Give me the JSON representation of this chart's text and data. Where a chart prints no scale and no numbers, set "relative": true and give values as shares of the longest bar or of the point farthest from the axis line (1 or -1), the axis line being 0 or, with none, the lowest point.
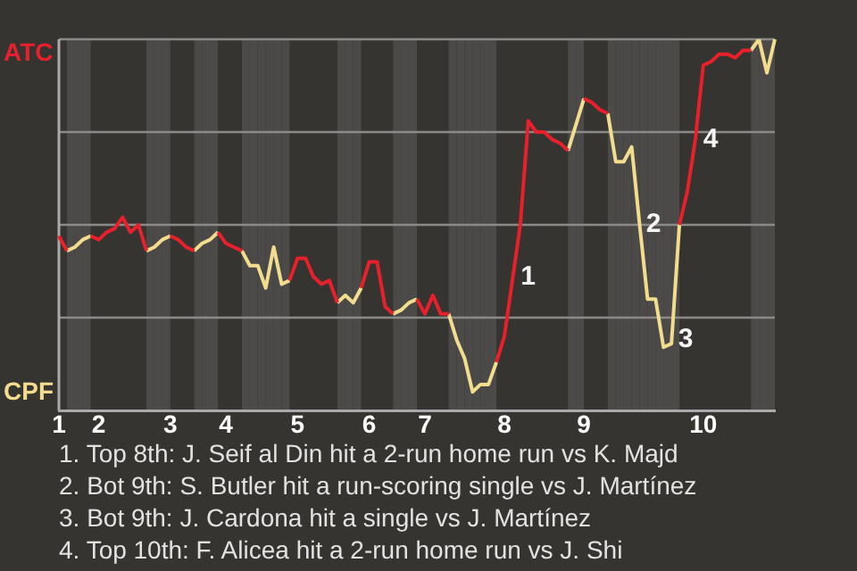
{
  "chart_data": {
    "type": "line",
    "relative": true,
    "categories": [
      "1",
      null,
      null,
      null,
      null,
      "2",
      null,
      null,
      null,
      null,
      null,
      null,
      null,
      null,
      "3",
      null,
      null,
      null,
      null,
      null,
      null,
      "4",
      null,
      null,
      null,
      null,
      null,
      null,
      null,
      null,
      "5",
      null,
      null,
      null,
      null,
      null,
      null,
      null,
      null,
      "6",
      null,
      null,
      null,
      null,
      null,
      null,
      "7",
      null,
      null,
      null,
      null,
      null,
      null,
      null,
      null,
      null,
      "8",
      null,
      null,
      null,
      null,
      null,
      null,
      null,
      null,
      null,
      "9",
      null,
      null,
      null,
      null,
      null,
      null,
      null,
      null,
      null,
      null,
      null,
      null,
      null,
      null,
      "10",
      null,
      null,
      null,
      null,
      null,
      null,
      null,
      null,
      null
    ],
    "series": [
      {
        "name": "ATC",
        "color": "#e8202c",
        "values": [
          0.47,
          0.43,
          null,
          null,
          0.47,
          0.46,
          0.48,
          0.49,
          0.52,
          0.48,
          0.5,
          0.43,
          null,
          null,
          0.47,
          0.46,
          0.44,
          0.43,
          null,
          null,
          0.48,
          0.45,
          0.44,
          0.43,
          null,
          null,
          null,
          null,
          null,
          0.35,
          0.41,
          0.41,
          0.36,
          0.34,
          0.35,
          0.29,
          null,
          null,
          0.33,
          0.4,
          0.4,
          0.28,
          0.26,
          null,
          null,
          0.3,
          0.26,
          0.31,
          0.26,
          0.26,
          null,
          null,
          null,
          null,
          null,
          0.13,
          0.2,
          0.35,
          0.5,
          0.78,
          0.75,
          0.75,
          0.73,
          0.72,
          0.7,
          null,
          0.84,
          0.83,
          0.81,
          0.8,
          null,
          null,
          null,
          null,
          null,
          null,
          null,
          null,
          0.5,
          0.59,
          0.73,
          0.93,
          0.94,
          0.96,
          0.96,
          0.95,
          0.97,
          0.97,
          null,
          null,
          null
        ]
      },
      {
        "name": "CPF",
        "color": "#f2dc8e",
        "values": [
          null,
          0.43,
          0.44,
          0.46,
          0.47,
          null,
          null,
          null,
          null,
          null,
          null,
          0.43,
          0.44,
          0.46,
          0.47,
          null,
          null,
          0.43,
          0.45,
          0.46,
          0.48,
          null,
          null,
          0.43,
          0.39,
          0.39,
          0.33,
          0.44,
          0.34,
          0.35,
          null,
          null,
          null,
          null,
          null,
          0.29,
          0.31,
          0.29,
          0.33,
          null,
          null,
          null,
          0.26,
          0.27,
          0.29,
          0.3,
          null,
          null,
          null,
          0.26,
          0.19,
          0.14,
          0.05,
          0.07,
          0.07,
          0.13,
          null,
          null,
          null,
          null,
          null,
          null,
          null,
          null,
          0.7,
          0.77,
          0.84,
          null,
          null,
          0.8,
          0.67,
          0.67,
          0.71,
          0.5,
          0.3,
          0.3,
          0.17,
          0.18,
          0.5,
          null,
          null,
          null,
          null,
          null,
          null,
          null,
          null,
          0.97,
          1,
          0.91,
          1
        ]
      }
    ],
    "grid": "y",
    "legend": false,
    "marker": "none",
    "line_style": "solid",
    "annotations": [
      "1",
      "2",
      "3",
      "4",
      "1. Top 8th: J. Seif al Din hit a 2-run home run vs K. Majd",
      "2. Bot 9th: S. Butler hit a run-scoring single vs J. Martínez",
      "3. Bot 9th: J. Cardona hit a single vs J. Martínez",
      "4. Top 10th: F. Alicea hit a 2-run home run vs J. Shi"
    ]
  }
}
